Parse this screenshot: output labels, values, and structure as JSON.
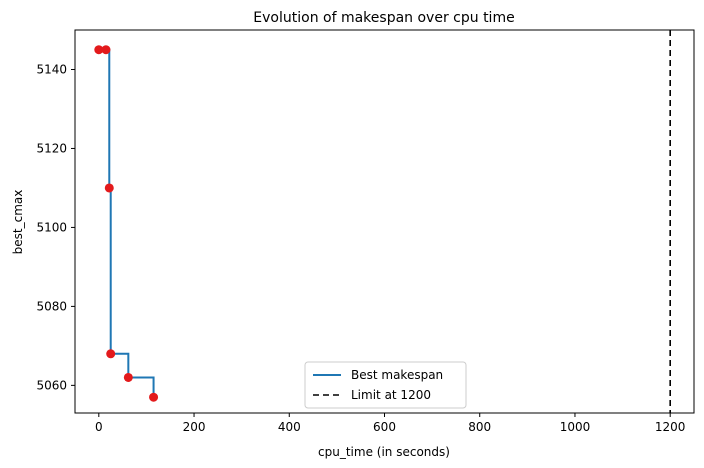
{
  "chart_data": {
    "type": "line",
    "title": "Evolution of makespan over cpu time",
    "xlabel": "cpu_time (in seconds)",
    "ylabel": "best_cmax",
    "xlim": [
      -50,
      1250
    ],
    "ylim": [
      5053,
      5150
    ],
    "x_ticks": [
      0,
      200,
      400,
      600,
      800,
      1000,
      1200
    ],
    "y_ticks": [
      5060,
      5080,
      5100,
      5120,
      5140
    ],
    "grid": false,
    "legend_position": "lower-center",
    "series": [
      {
        "name": "Best makespan",
        "style": "step-post",
        "color": "#1f77b4",
        "points": [
          {
            "x": 0,
            "y": 5145
          },
          {
            "x": 15,
            "y": 5145
          },
          {
            "x": 22,
            "y": 5110
          },
          {
            "x": 25,
            "y": 5068
          },
          {
            "x": 62,
            "y": 5062
          },
          {
            "x": 115,
            "y": 5057
          }
        ]
      },
      {
        "name": "Limit at 1200",
        "style": "dashed-vertical",
        "color": "#000000",
        "x": 1200
      }
    ],
    "markers": {
      "color": "#e31a1c",
      "points": [
        {
          "x": 0,
          "y": 5145
        },
        {
          "x": 15,
          "y": 5145
        },
        {
          "x": 22,
          "y": 5110
        },
        {
          "x": 25,
          "y": 5068
        },
        {
          "x": 62,
          "y": 5062
        },
        {
          "x": 115,
          "y": 5057
        }
      ]
    }
  }
}
